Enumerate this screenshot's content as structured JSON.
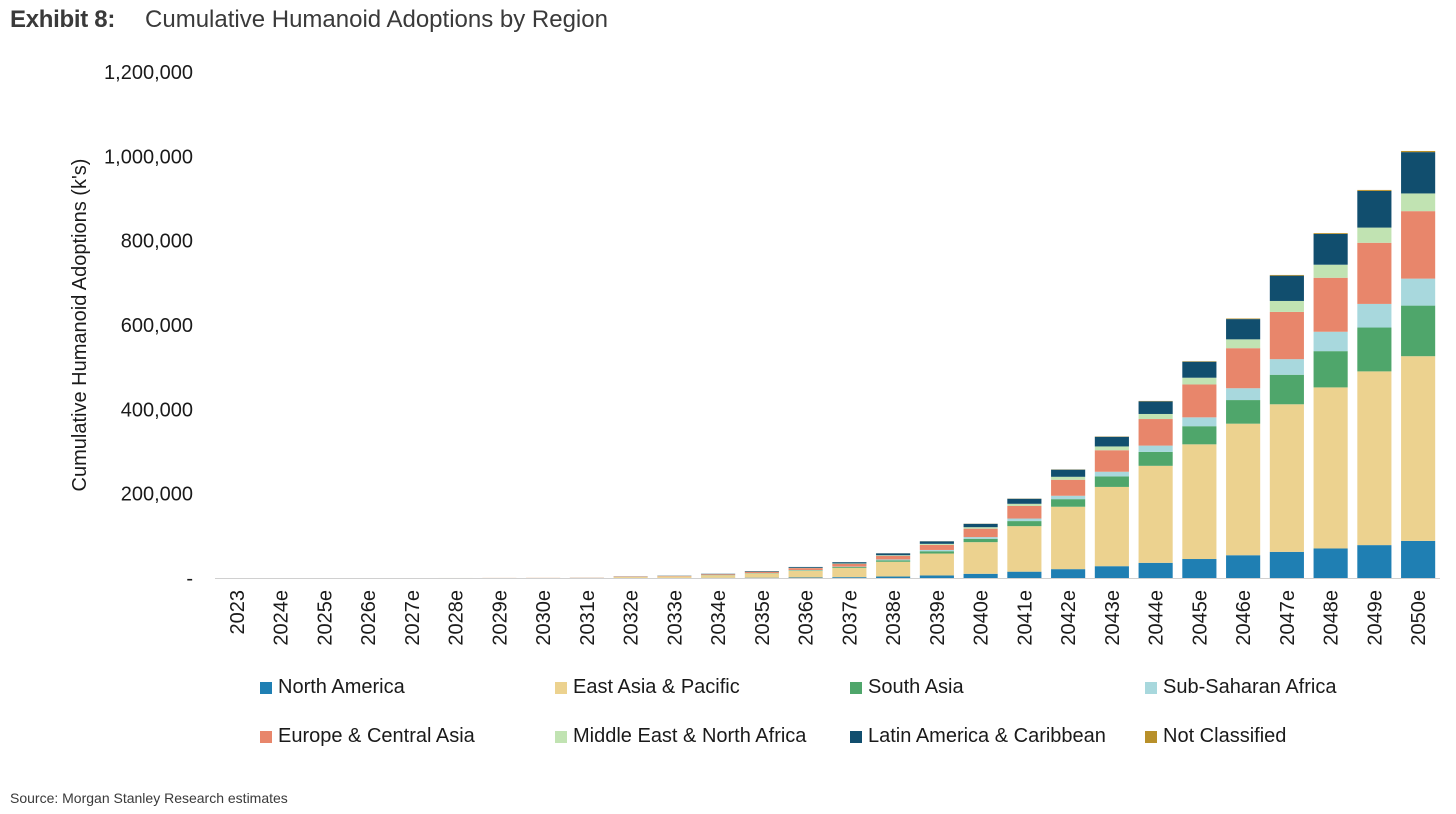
{
  "header": {
    "exhibit_label": "Exhibit 8:",
    "title": "Cumulative Humanoid Adoptions by Region"
  },
  "source": "Source: Morgan Stanley Research estimates",
  "chart_data": {
    "type": "bar",
    "stacked": true,
    "title": "Cumulative Humanoid Adoptions by Region",
    "xlabel": "",
    "ylabel": "Cumulative Humanoid Adoptions (k's)",
    "ylim": [
      0,
      1200000
    ],
    "yticks": [
      0,
      200000,
      400000,
      600000,
      800000,
      1000000,
      1200000
    ],
    "ytick_labels": [
      "-",
      "200,000",
      "400,000",
      "600,000",
      "800,000",
      "1,000,000",
      "1,200,000"
    ],
    "grid": false,
    "legend_position": "bottom",
    "categories": [
      "2023",
      "2024e",
      "2025e",
      "2026e",
      "2027e",
      "2028e",
      "2029e",
      "2030e",
      "2031e",
      "2032e",
      "2033e",
      "2034e",
      "2035e",
      "2036e",
      "2037e",
      "2038e",
      "2039e",
      "2040e",
      "2041e",
      "2042e",
      "2043e",
      "2044e",
      "2045e",
      "2046e",
      "2047e",
      "2048e",
      "2049e",
      "2050e"
    ],
    "series": [
      {
        "name": "North America",
        "color": "#1f7fb3",
        "values": [
          0,
          0,
          0,
          0,
          0,
          0,
          0,
          0,
          0,
          100,
          200,
          400,
          700,
          1200,
          2000,
          3500,
          6000,
          10000,
          15000,
          21000,
          28000,
          36000,
          45000,
          54000,
          62000,
          70000,
          78000,
          88000
        ]
      },
      {
        "name": "East Asia & Pacific",
        "color": "#ecd28f",
        "values": [
          0,
          0,
          0,
          0,
          0,
          100,
          200,
          300,
          500,
          2500,
          3500,
          6000,
          10000,
          16000,
          22000,
          35000,
          52000,
          75000,
          108000,
          148000,
          188000,
          230000,
          272000,
          312000,
          350000,
          382000,
          412000,
          438000
        ]
      },
      {
        "name": "South Asia",
        "color": "#4fa66b",
        "values": [
          0,
          0,
          0,
          0,
          0,
          0,
          0,
          0,
          0,
          100,
          200,
          400,
          700,
          1200,
          2000,
          3500,
          5500,
          8000,
          12000,
          18000,
          25000,
          33000,
          43000,
          56000,
          70000,
          86000,
          104000,
          120000
        ]
      },
      {
        "name": "Sub-Saharan Africa",
        "color": "#a8d8dd",
        "values": [
          0,
          0,
          0,
          0,
          0,
          0,
          0,
          0,
          0,
          50,
          100,
          200,
          400,
          600,
          1000,
          2000,
          3000,
          4000,
          6000,
          8000,
          11000,
          15000,
          21000,
          28000,
          37000,
          46000,
          56000,
          64000
        ]
      },
      {
        "name": "Europe & Central Asia",
        "color": "#e8866b",
        "values": [
          0,
          0,
          0,
          0,
          0,
          0,
          100,
          200,
          300,
          800,
          1000,
          1800,
          3000,
          4500,
          6500,
          8500,
          12000,
          20000,
          30000,
          38000,
          51000,
          63000,
          78000,
          95000,
          112000,
          128000,
          145000,
          160000
        ]
      },
      {
        "name": "Middle East & North Africa",
        "color": "#c1e3b2",
        "values": [
          0,
          0,
          0,
          0,
          0,
          0,
          0,
          0,
          0,
          100,
          200,
          300,
          400,
          700,
          1000,
          1500,
          2500,
          3500,
          5000,
          7000,
          9000,
          12000,
          16000,
          21000,
          26000,
          31000,
          36000,
          42000
        ]
      },
      {
        "name": "Latin America & Caribbean",
        "color": "#114e6e",
        "values": [
          0,
          0,
          0,
          0,
          0,
          0,
          0,
          0,
          100,
          300,
          500,
          900,
          1300,
          2000,
          3000,
          4500,
          6000,
          8000,
          12000,
          17000,
          23000,
          30000,
          38000,
          48000,
          60000,
          73000,
          87000,
          98000
        ]
      },
      {
        "name": "Not Classified",
        "color": "#b8902a",
        "values": [
          0,
          0,
          0,
          0,
          0,
          0,
          0,
          0,
          0,
          0,
          0,
          0,
          0,
          0,
          0,
          100,
          200,
          300,
          400,
          500,
          700,
          900,
          1100,
          1400,
          1700,
          2000,
          2300,
          2700
        ]
      }
    ]
  }
}
